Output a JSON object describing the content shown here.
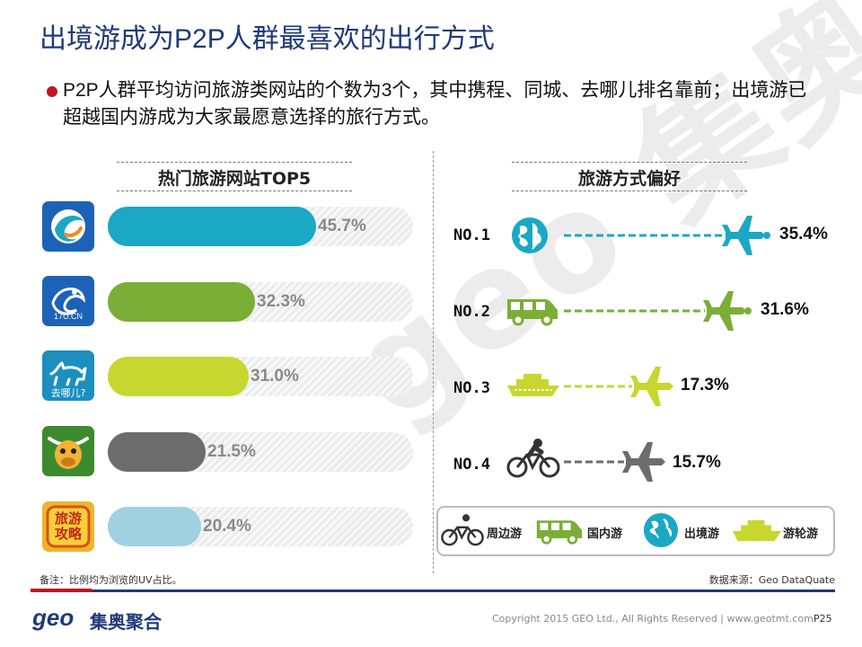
{
  "title": "出境游成为P2P人群最喜欢的出行方式",
  "summary": "P2P人群平均访问旅游类网站的个数为3个，其中携程、同城、去哪儿排名靠前；出境游已超越国内游成为大家最愿意选择的旅行方式。",
  "watermark": "geo 集奥聚合",
  "colors": {
    "title": "#1f3a7a",
    "accent_red": "#c0161f",
    "navy": "#1f3a7a"
  },
  "chart_data": [
    {
      "type": "bar",
      "title": "热门旅游网站TOP5",
      "categories": [
        "携程",
        "同城",
        "去哪儿",
        "途牛",
        "旅游攻略"
      ],
      "values": [
        45.7,
        32.3,
        31.0,
        21.5,
        20.4
      ],
      "value_labels": [
        "45.7%",
        "32.3%",
        "31.0%",
        "21.5%",
        "20.4%"
      ],
      "colors": [
        "#1aa8c4",
        "#7bae36",
        "#c8d630",
        "#6d6d6d",
        "#9fd1e0"
      ],
      "icon_labels": [
        "",
        "17U.CN",
        "去哪儿?",
        "",
        "旅游攻略"
      ],
      "xlim": [
        0,
        67
      ],
      "orientation": "horizontal"
    },
    {
      "type": "bar",
      "title": "旅游方式偏好",
      "ranks": [
        "NO.1",
        "NO.2",
        "NO.3",
        "NO.4"
      ],
      "categories": [
        "出境游",
        "国内游",
        "游轮游",
        "周边游"
      ],
      "values": [
        35.4,
        31.6,
        17.3,
        15.7
      ],
      "value_labels": [
        "35.4%",
        "31.6%",
        "17.3%",
        "15.7%"
      ],
      "colors": [
        "#1aa8c4",
        "#7bae36",
        "#c8d630",
        "#6d6d6d"
      ]
    }
  ],
  "legend": {
    "items": [
      {
        "label": "周边游",
        "icon": "bicycle-icon"
      },
      {
        "label": "国内游",
        "icon": "van-icon"
      },
      {
        "label": "出境游",
        "icon": "globe-icon"
      },
      {
        "label": "游轮游",
        "icon": "ship-icon"
      }
    ]
  },
  "footer": {
    "note": "备注：比例均为浏览的UV占比。",
    "source": "数据来源：Geo DataQuate",
    "logo_text": "geo",
    "logo_cn": "集奥聚合",
    "copyright": "Copyright 2015 GEO Ltd., All Rights Reserved  |  www.geotmt.com",
    "page": "P25"
  }
}
